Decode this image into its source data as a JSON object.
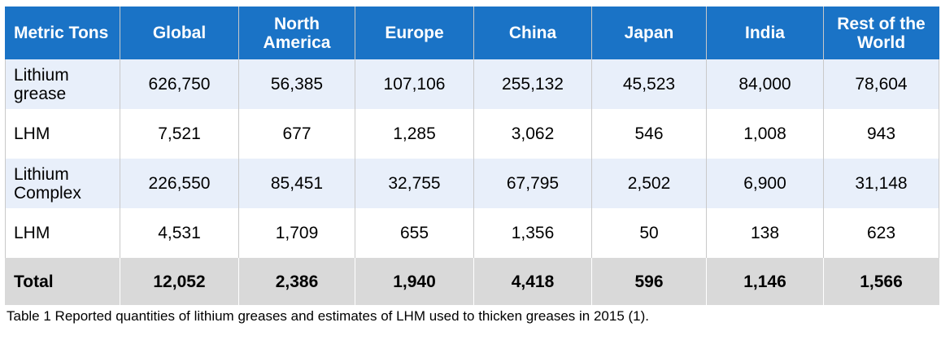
{
  "table": {
    "headers": [
      "Metric Tons",
      "Global",
      "North America",
      "Europe",
      "China",
      "Japan",
      "India",
      "Rest of the World"
    ],
    "rows": [
      [
        "Lithium grease",
        "626,750",
        "56,385",
        "107,106",
        "255,132",
        "45,523",
        "84,000",
        "78,604"
      ],
      [
        "LHM",
        "7,521",
        "677",
        "1,285",
        "3,062",
        "546",
        "1,008",
        "943"
      ],
      [
        "Lithium Complex",
        "226,550",
        "85,451",
        "32,755",
        "67,795",
        "2,502",
        "6,900",
        "31,148"
      ],
      [
        "LHM",
        "4,531",
        "1,709",
        "655",
        "1,356",
        "50",
        "138",
        "623"
      ]
    ],
    "total": [
      "Total",
      "12,052",
      "2,386",
      "1,940",
      "4,418",
      "596",
      "1,146",
      "1,566"
    ]
  },
  "caption": "Table 1 Reported quantities of lithium greases and estimates of LHM used to thicken greases in 2015 (1).",
  "colors": {
    "header_bg": "#1a73c6",
    "band_bg": "#e8effa",
    "total_bg": "#d9d9d9"
  }
}
